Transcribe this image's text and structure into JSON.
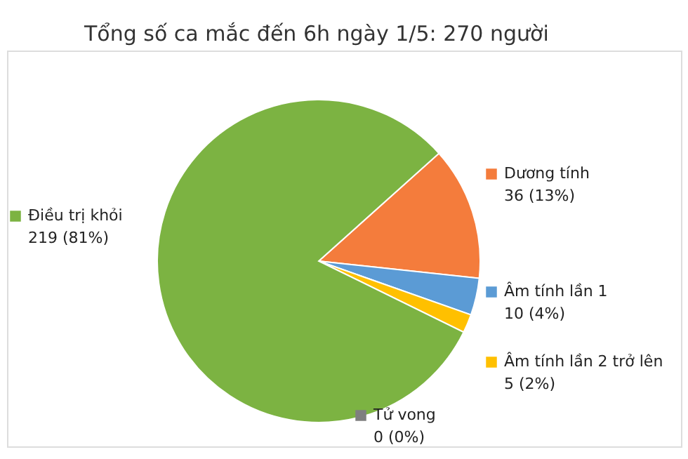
{
  "chart_data": {
    "type": "pie",
    "title": "Tổng số ca mắc đến 6h ngày 1/5: 270 người",
    "categories": [
      "Dương tính",
      "Âm tính lần 1",
      "Âm tính lần 2 trở lên",
      "Tử vong",
      "Điều trị khỏi"
    ],
    "values": [
      36,
      10,
      5,
      0,
      219
    ],
    "value_labels": [
      "36 (13%)",
      "10 (4%)",
      "5 (2%)",
      "0 (0%)",
      "219 (81%)"
    ],
    "colors": [
      "#f47c3c",
      "#5b9bd5",
      "#ffc000",
      "#7f7f7f",
      "#7cb342"
    ],
    "legend": "right"
  }
}
